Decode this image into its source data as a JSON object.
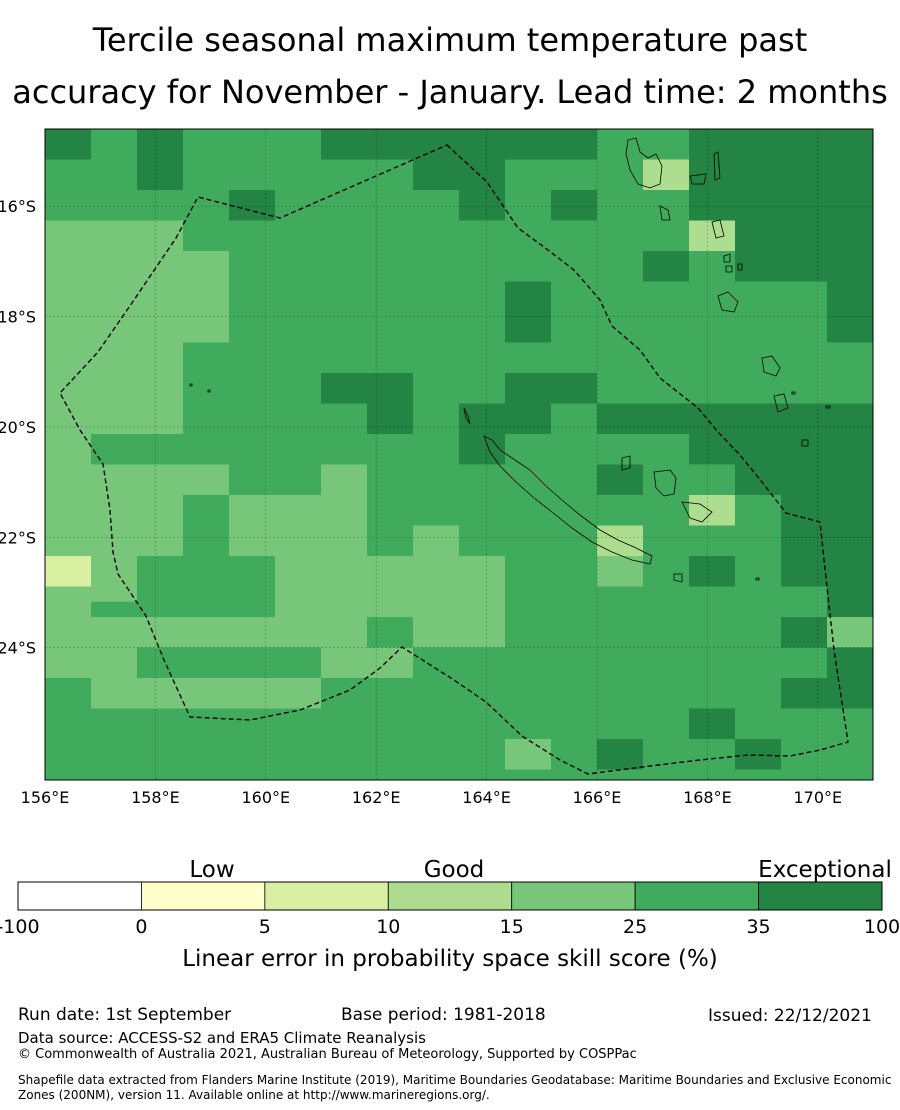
{
  "title": {
    "line1": "Tercile seasonal maximum temperature past",
    "line2": "accuracy for November - January. Lead time: 2 months"
  },
  "map": {
    "lon_range": [
      156,
      171
    ],
    "lat_range": [
      -26.4,
      -14.6
    ],
    "lon_ticks": [
      156,
      158,
      160,
      162,
      164,
      166,
      168,
      170
    ],
    "lon_tick_labels": [
      "156°E",
      "158°E",
      "160°E",
      "162°E",
      "164°E",
      "166°E",
      "168°E",
      "170°E"
    ],
    "lat_ticks": [
      -16,
      -18,
      -20,
      -22,
      -24
    ],
    "lat_tick_labels": [
      "16°S",
      "18°S",
      "20°S",
      "22°S",
      "24°S"
    ],
    "grid": true,
    "colors": {
      "band_15_25": "#78c679",
      "band_25_35": "#41ab5d",
      "band_35_100": "#238443",
      "band_10_15": "#addd8e",
      "band_5_10": "#d9f0a3"
    },
    "boundary": "dashed maritime boundary (EEZ)"
  },
  "colorbar": {
    "category_labels": [
      "Low",
      "Good",
      "Exceptional"
    ],
    "tick_labels": [
      "-100",
      "0",
      "5",
      "10",
      "15",
      "25",
      "35",
      "100"
    ],
    "colors": [
      "#ffffff",
      "#ffffcc",
      "#d9f0a3",
      "#addd8e",
      "#78c679",
      "#41ab5d",
      "#238443"
    ],
    "label": "Linear error in probability space skill score (%)"
  },
  "footer": {
    "run_date": "Run date: 1st September",
    "base_period": "Base period: 1981-2018",
    "issued": "Issued: 22/12/2021",
    "data_source": "Data source: ACCESS-S2 and ERA5 Climate Reanalysis",
    "copyright": "© Commonwealth of Australia 2021, Australian Bureau of Meteorology, Supported by COSPPac",
    "shapefile_line1": "Shapefile data extracted from Flanders Marine Institute (2019), Maritime Boundaries Geodatabase: Maritime Boundaries and Exclusive Economic",
    "shapefile_line2": "Zones (200NM), version 11. Available online at http://www.marineregions.org/."
  }
}
